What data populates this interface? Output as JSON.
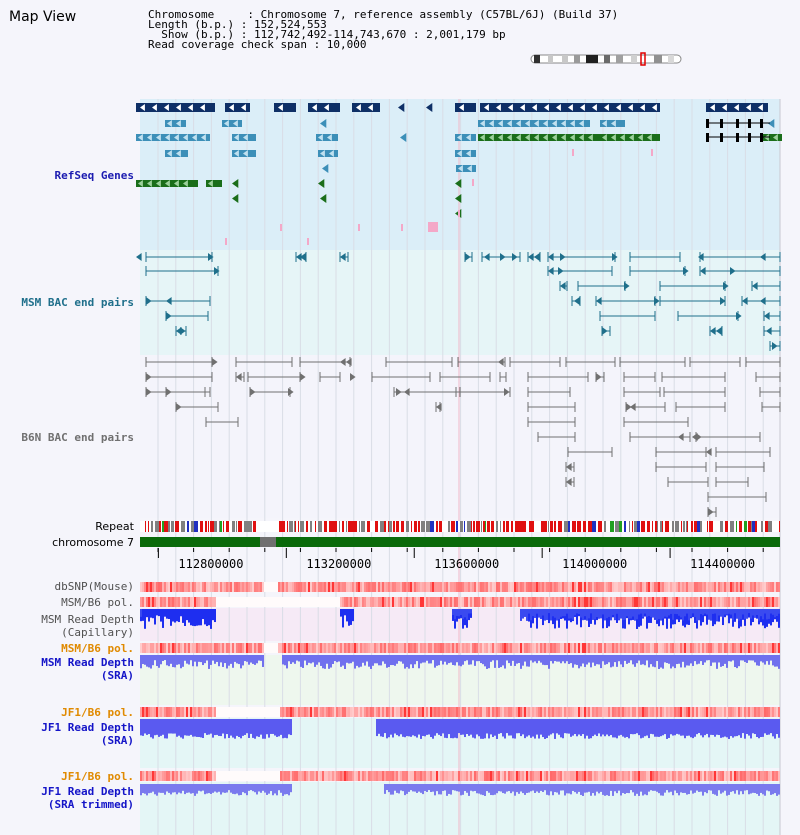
{
  "title": "Map View",
  "info": {
    "chromosome_line": "Chromosome     : Chromosome 7, reference assembly (C57BL/6J) (Build 37)",
    "length_line": "Length (b.p.) : 152,524,553",
    "show_line": "  Show (b.p.) : 112,742,492-114,743,670 : 2,001,179 bp",
    "coverage_line": "Read coverage check span : 10,000"
  },
  "tracks": {
    "refseq_genes": "RefSeq Genes",
    "msm_bac": "MSM BAC end pairs",
    "b6n_bac": "B6N BAC end pairs",
    "repeat": "Repeat",
    "chromosome": "chromosome 7",
    "dbsnp": "dbSNP(Mouse)",
    "msm_b6_pol": "MSM/B6 pol.",
    "msm_read_depth_cap": "MSM Read Depth\n(Capillary)",
    "msm_b6_pol_2": "MSM/B6 pol.",
    "msm_read_depth_sra": "MSM Read Depth\n(SRA)",
    "jf1_b6_pol": "JF1/B6 pol.",
    "jf1_read_depth_sra": "JF1 Read Depth\n(SRA)",
    "jf1_b6_pol_2": "JF1/B6 pol.",
    "jf1_read_depth_trimmed": "JF1 Read Depth\n(SRA trimmed)"
  },
  "axis": {
    "ticks": [
      {
        "pos": 112800000,
        "label": "112800000"
      },
      {
        "pos": 113200000,
        "label": "113200000"
      },
      {
        "pos": 113600000,
        "label": "113600000"
      },
      {
        "pos": 114000000,
        "label": "114000000"
      },
      {
        "pos": 114400000,
        "label": "114400000"
      }
    ],
    "start": 112742492,
    "end": 114743670
  },
  "colors": {
    "gene_dark": "#0e2f66",
    "gene_mid": "#3c8fb8",
    "gene_green": "#1a6e1a",
    "msm_bac": "#1f6f8b",
    "b6n_bac": "#707070",
    "refseq_label": "#1b1bb0",
    "msm_label": "#1f6f8b",
    "b6n_label": "#707070",
    "orange_label": "#e08a00",
    "blue_label": "#1414c8",
    "chrom_green": "#0a6a0a"
  }
}
